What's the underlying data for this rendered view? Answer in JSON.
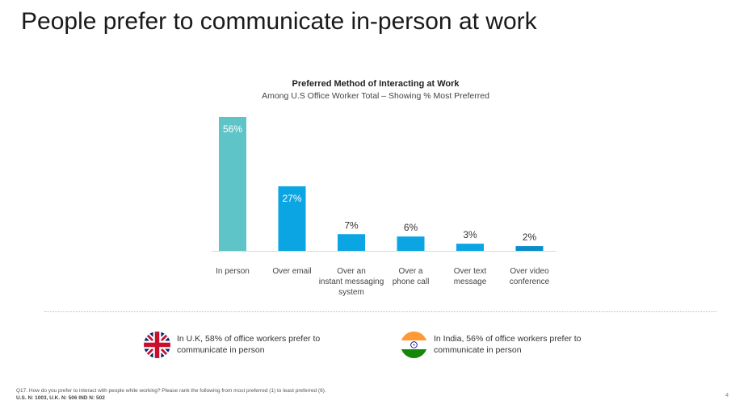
{
  "slide": {
    "title": "People prefer to communicate in-person at work",
    "page_number": "4"
  },
  "chart_data": {
    "type": "bar",
    "title": "Preferred Method of Interacting at Work",
    "subtitle": "Among U.S Office Worker Total – Showing % Most Preferred",
    "categories": [
      [
        "In person"
      ],
      [
        "Over email"
      ],
      [
        "Over an",
        "instant messaging",
        "system"
      ],
      [
        "Over a",
        "phone call"
      ],
      [
        "Over text",
        "message"
      ],
      [
        "Over video",
        "conference"
      ]
    ],
    "values": [
      56,
      27,
      7,
      6,
      3,
      2
    ],
    "value_labels": [
      "56%",
      "27%",
      "7%",
      "6%",
      "3%",
      "2%"
    ],
    "bar_colors": [
      "#5ec4c8",
      "#0aa5e2",
      "#0aa5e2",
      "#0aa5e2",
      "#0aa5e2",
      "#0a8ccc"
    ],
    "ylim": [
      0,
      56
    ],
    "grid": false,
    "legend": "none"
  },
  "callouts": {
    "uk": {
      "text": "In U.K, 58% of office workers prefer to communicate in person",
      "flag": "uk-flag-icon"
    },
    "india": {
      "text": "In India, 56% of office workers prefer to communicate in person",
      "flag": "india-flag-icon"
    }
  },
  "footnote": {
    "question": "Q17. How do you prefer to interact with people while working? Please rank the following from most preferred (1) to least preferred (6).",
    "sample": "U.S. N: 1003, U.K. N: 506 IND N: 502"
  }
}
